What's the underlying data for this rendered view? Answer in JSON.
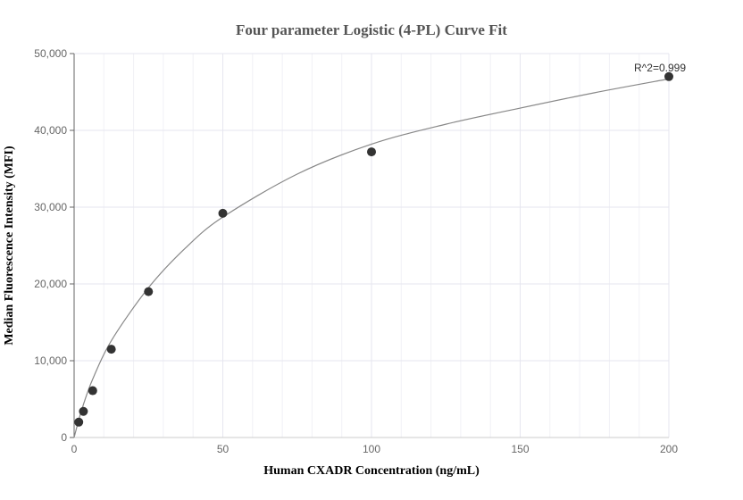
{
  "chart_data": {
    "type": "scatter",
    "title": "Four parameter Logistic (4-PL) Curve Fit",
    "xlabel": "Human CXADR Concentration (ng/mL)",
    "ylabel": "Median Fluorescence Intensity (MFI)",
    "xlim": [
      0,
      200
    ],
    "ylim": [
      0,
      50000
    ],
    "x_ticks": [
      0,
      50,
      100,
      150,
      200
    ],
    "y_ticks": [
      0,
      10000,
      20000,
      30000,
      40000,
      50000
    ],
    "x_tick_labels": [
      "0",
      "50",
      "100",
      "150",
      "200"
    ],
    "y_tick_labels": [
      "0",
      "10,000",
      "20,000",
      "30,000",
      "40,000",
      "50,000"
    ],
    "grid": true,
    "series": [
      {
        "points": [
          {
            "x": 1.5625,
            "y": 2000
          },
          {
            "x": 3.125,
            "y": 3400
          },
          {
            "x": 6.25,
            "y": 6100
          },
          {
            "x": 12.5,
            "y": 11500
          },
          {
            "x": 25,
            "y": 19000
          },
          {
            "x": 50,
            "y": 29200
          },
          {
            "x": 100,
            "y": 37200
          },
          {
            "x": 200,
            "y": 47000
          }
        ]
      }
    ],
    "fit_curve": [
      {
        "x": 0,
        "y": 0
      },
      {
        "x": 1.5625,
        "y": 2300
      },
      {
        "x": 3.125,
        "y": 4300
      },
      {
        "x": 6.25,
        "y": 7600
      },
      {
        "x": 12.5,
        "y": 12600
      },
      {
        "x": 25,
        "y": 19500
      },
      {
        "x": 37.5,
        "y": 24700
      },
      {
        "x": 50,
        "y": 28700
      },
      {
        "x": 75,
        "y": 34300
      },
      {
        "x": 100,
        "y": 38200
      },
      {
        "x": 125,
        "y": 40800
      },
      {
        "x": 150,
        "y": 42900
      },
      {
        "x": 175,
        "y": 44900
      },
      {
        "x": 200,
        "y": 46700
      }
    ],
    "annotation": "R^2=0.999",
    "colors": {
      "point": "#333333",
      "curve": "#888888",
      "grid": "#e6e6ef",
      "axis": "#666666"
    }
  }
}
